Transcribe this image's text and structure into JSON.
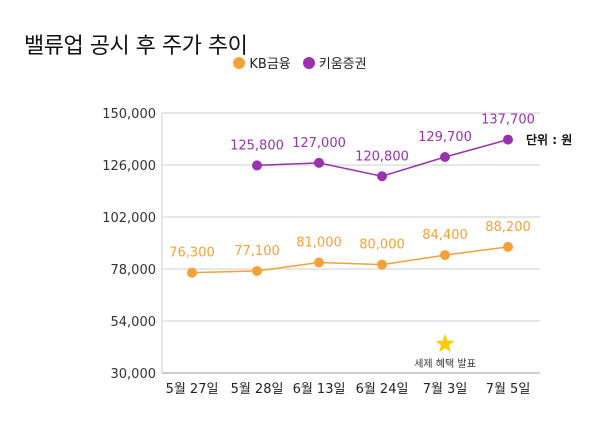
{
  "chart_data": {
    "type": "line",
    "title": "밸류업 공시 후 주가 추이",
    "categories": [
      "5월 27일",
      "5월 28일",
      "6월 13일",
      "6월 24일",
      "7월 3일",
      "7월 5일"
    ],
    "series": [
      {
        "name": "KB금융",
        "color": "#F7A035",
        "values": [
          76300,
          77100,
          81000,
          80000,
          84400,
          88200
        ],
        "labels": [
          "76,300",
          "77,100",
          "81,000",
          "80,000",
          "84,400",
          "88,200"
        ]
      },
      {
        "name": "키움증권",
        "color": "#9B30B0",
        "values": [
          null,
          125800,
          127000,
          120800,
          129700,
          137700
        ],
        "labels": [
          null,
          "125,800",
          "127,000",
          "120,800",
          "129,700",
          "137,700"
        ]
      }
    ],
    "ylim": [
      30000,
      150000
    ],
    "yticks": [
      30000,
      54000,
      78000,
      102000,
      126000,
      150000
    ],
    "ytick_labels": [
      "30,000",
      "54,000",
      "78,000",
      "102,000",
      "126,000",
      "150,000"
    ],
    "grid": true,
    "legend": "top",
    "unit_note": "단위 : 원",
    "annotation": {
      "text": "세제 혜택 발표",
      "category": "7월 3일",
      "icon": "star-icon",
      "color": "#FFCC00"
    }
  }
}
